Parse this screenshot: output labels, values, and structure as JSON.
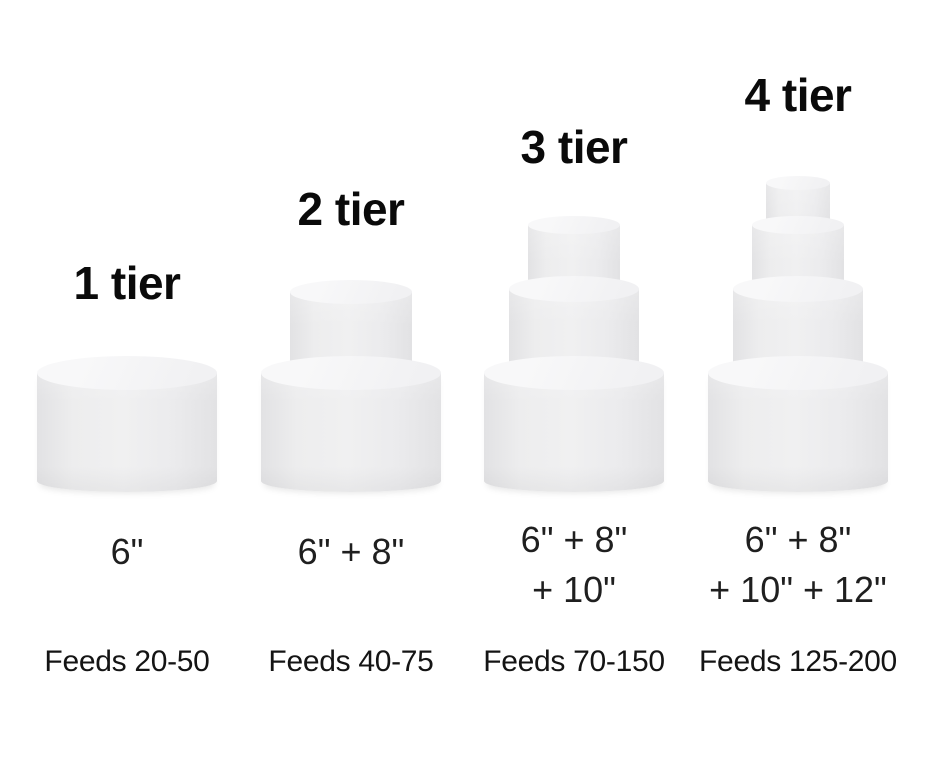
{
  "background_color": "#ffffff",
  "text_color": "#1a1a1a",
  "cake_color": "#ededee",
  "columns": [
    {
      "id": "1-tier",
      "title": "1 tier",
      "tier_count": 1,
      "sizes": [
        "6\""
      ],
      "feeds": "Feeds 20-50"
    },
    {
      "id": "2-tier",
      "title": "2 tier",
      "tier_count": 2,
      "sizes": [
        "6\" + 8\""
      ],
      "feeds": "Feeds 40-75"
    },
    {
      "id": "3-tier",
      "title": "3 tier",
      "tier_count": 3,
      "sizes": [
        "6\" + 8\"",
        "+ 10\""
      ],
      "feeds": "Feeds 70-150"
    },
    {
      "id": "4-tier",
      "title": "4 tier",
      "tier_count": 4,
      "sizes": [
        "6\" + 8\"",
        "+ 10\" + 12\""
      ],
      "feeds": "Feeds 125-200"
    }
  ]
}
